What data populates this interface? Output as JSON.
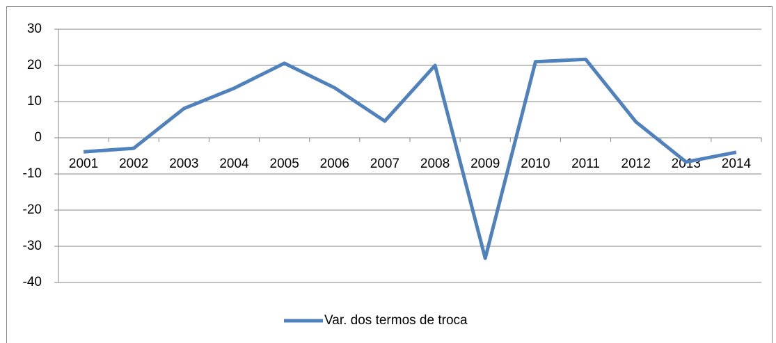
{
  "chart_data": {
    "type": "line",
    "categories": [
      "2001",
      "2002",
      "2003",
      "2004",
      "2005",
      "2006",
      "2007",
      "2008",
      "2009",
      "2010",
      "2011",
      "2012",
      "2013",
      "2014"
    ],
    "series": [
      {
        "name": "Var. dos termos de troca",
        "color": "#4f81bd",
        "values": [
          -3.9,
          -2.9,
          8.1,
          13.7,
          20.6,
          13.8,
          4.6,
          20.0,
          -33.3,
          21.0,
          21.7,
          4.4,
          -6.7,
          -4.0
        ]
      }
    ],
    "ylim": [
      -40,
      30
    ],
    "yticks": [
      -40,
      -30,
      -20,
      -10,
      0,
      10,
      20,
      30
    ],
    "grid": true,
    "legend": "bottom"
  }
}
